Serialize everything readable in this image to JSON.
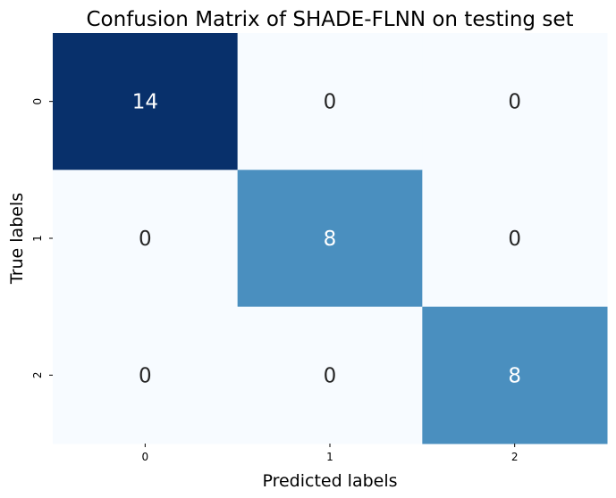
{
  "chart_data": {
    "type": "heatmap",
    "title": "Confusion Matrix of SHADE-FLNN on testing set",
    "xlabel": "Predicted labels",
    "ylabel": "True labels",
    "x_categories": [
      "0",
      "1",
      "2"
    ],
    "y_categories": [
      "0",
      "1",
      "2"
    ],
    "values": [
      [
        14,
        0,
        0
      ],
      [
        0,
        8,
        0
      ],
      [
        0,
        0,
        8
      ]
    ],
    "colormap": "Blues",
    "colorbar": false,
    "annotations": true
  },
  "colors": {
    "low": "#f7fbff",
    "mid": "#559fcd",
    "high": "#08306b",
    "text_dark": "#262626",
    "text_light": "#ffffff"
  }
}
